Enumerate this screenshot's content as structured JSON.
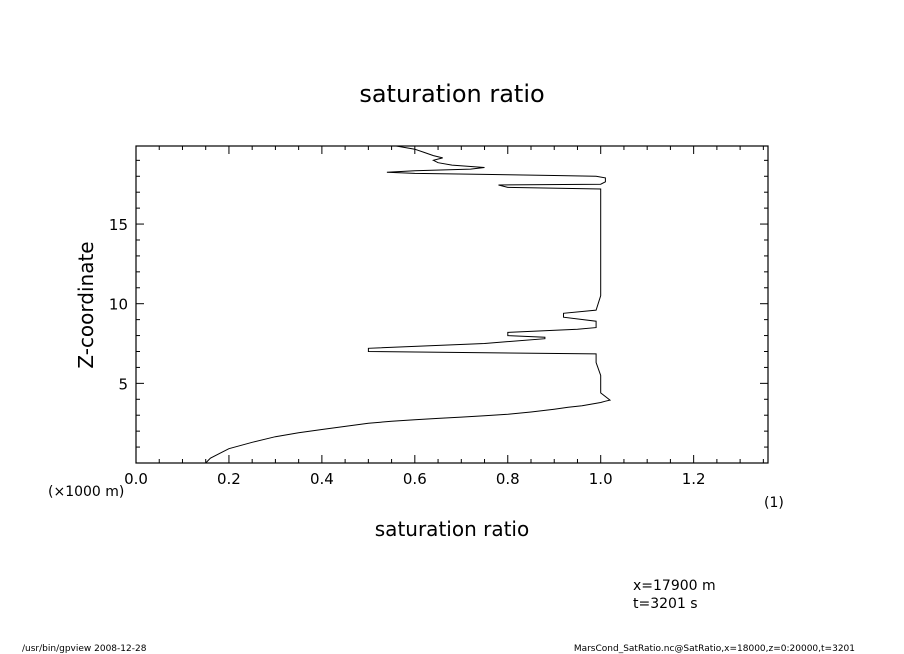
{
  "chart_data": {
    "type": "line",
    "title": "saturation ratio",
    "xlabel": "saturation ratio",
    "xunit": "(1)",
    "ylabel": "Z-coordinate",
    "yunit": "(×1000 m)",
    "xlim": [
      0.0,
      1.36
    ],
    "ylim": [
      0,
      19.9
    ],
    "x_ticks": [
      0.0,
      0.2,
      0.4,
      0.6,
      0.8,
      1.0,
      1.2
    ],
    "x_tick_labels": [
      "0.0",
      "0.2",
      "0.4",
      "0.6",
      "0.8",
      "1.0",
      "1.2"
    ],
    "y_ticks": [
      5,
      10,
      15
    ],
    "y_tick_labels": [
      "5",
      "10",
      "15"
    ],
    "grid": false,
    "series": [
      {
        "x": [
          0.15,
          0.16,
          0.18,
          0.2,
          0.25,
          0.3,
          0.35,
          0.4,
          0.45,
          0.5,
          0.55,
          0.6,
          0.65,
          0.7,
          0.75,
          0.8,
          0.85,
          0.9,
          0.93,
          0.96,
          0.98,
          1.0,
          1.01,
          1.02,
          1.0,
          1.0,
          0.99,
          0.99,
          0.5,
          0.5,
          0.75,
          0.88,
          0.88,
          0.8,
          0.8,
          0.95,
          0.99,
          0.99,
          0.92,
          0.92,
          0.99,
          1.0,
          1.0,
          1.0,
          1.0,
          1.0,
          0.8,
          0.78,
          1.0,
          1.01,
          1.01,
          0.99,
          0.9,
          0.8,
          0.75,
          0.6,
          0.54,
          0.6,
          0.72,
          0.75,
          0.68,
          0.65,
          0.64,
          0.66,
          0.64,
          0.62,
          0.6,
          0.56
        ],
        "y": [
          0.0,
          0.3,
          0.6,
          0.9,
          1.3,
          1.65,
          1.9,
          2.1,
          2.3,
          2.5,
          2.62,
          2.72,
          2.8,
          2.88,
          2.97,
          3.06,
          3.2,
          3.38,
          3.5,
          3.6,
          3.7,
          3.8,
          3.88,
          3.95,
          4.4,
          5.5,
          6.3,
          6.85,
          7.0,
          7.2,
          7.5,
          7.8,
          7.9,
          8.0,
          8.2,
          8.4,
          8.5,
          8.9,
          9.15,
          9.4,
          9.6,
          10.5,
          12.0,
          14.0,
          16.0,
          17.2,
          17.3,
          17.45,
          17.5,
          17.65,
          17.9,
          18.0,
          18.05,
          18.1,
          18.12,
          18.18,
          18.25,
          18.35,
          18.45,
          18.55,
          18.7,
          18.85,
          19.0,
          19.15,
          19.3,
          19.5,
          19.7,
          19.9
        ]
      }
    ]
  },
  "annotations": {
    "position_x": "x=17900 m",
    "time": "t=3201 s"
  },
  "footer": {
    "left": "/usr/bin/gpview   2008-12-28",
    "right": "MarsCond_SatRatio.nc@SatRatio,x=18000,z=0:20000,t=3201"
  }
}
